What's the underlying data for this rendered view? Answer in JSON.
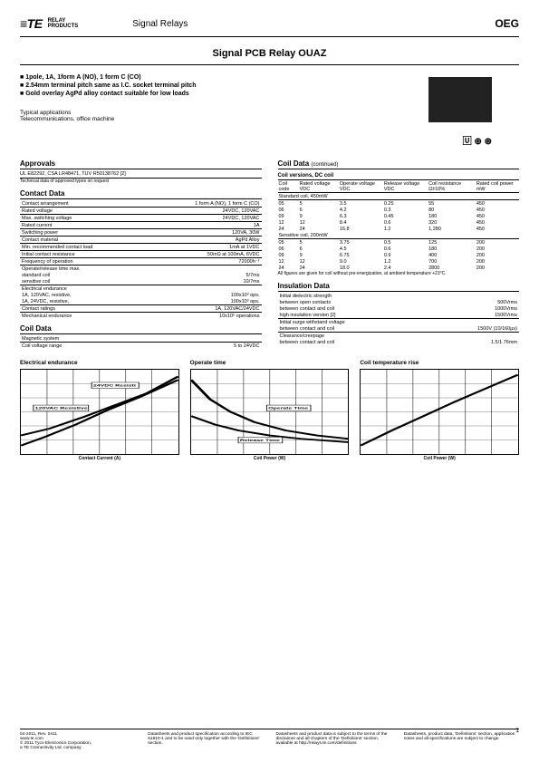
{
  "header": {
    "brand_prefix": "≡TE",
    "brand_sub": "connectivity",
    "relay_products": "RELAY\nPRODUCTS",
    "signal_relays": "Signal Relays",
    "oeg": "OEG"
  },
  "title": "Signal PCB Relay OUAZ",
  "features": [
    "1pole, 1A, 1form A (NO), 1 form C (CO)",
    "2.54mm terminal pitch same as I.C. socket terminal pitch",
    "Gold overlay AgPd alloy contact suitable for low loads"
  ],
  "applications": {
    "label": "Typical applications",
    "text": "Telecommunications, office machine"
  },
  "cert_marks": "🅤 ⓒ ⓢ",
  "approvals": {
    "title": "Approvals",
    "text": "UL E82292, CSA LR48471, TUV R50138762 [2]",
    "note": "Technical data of approved types on request"
  },
  "contact_data": {
    "title": "Contact Data",
    "rows": [
      {
        "k": "Contact arrangement",
        "v": "1 form A (NO), 1 form C (CO)"
      },
      {
        "k": "Rated voltage",
        "v": "24VDC, 120VAC"
      },
      {
        "k": "Max. switching voltage",
        "v": "24VDC, 120VAC"
      },
      {
        "k": "Rated current",
        "v": "1A"
      },
      {
        "k": "Switching power",
        "v": "120VA, 30W"
      },
      {
        "k": "Contact material",
        "v": "AgPd Alloy"
      },
      {
        "k": "Min. recommended contact load",
        "v": "1mA at 1VDC"
      },
      {
        "k": "Initial contact resistance",
        "v": "50mΩ at 100mA, 6VDC"
      },
      {
        "k": "Frequency of operation",
        "v": "72000h⁻¹"
      },
      {
        "k": "Operate/release time max.",
        "v": ""
      },
      {
        "k": "  standard coil",
        "v": "5/7ms"
      },
      {
        "k": "  sensitive coil",
        "v": "10/7ms"
      },
      {
        "k": "Electrical endurance",
        "v": ""
      },
      {
        "k": "  1A, 120VAC, resistive,",
        "v": "100x10³ ops."
      },
      {
        "k": "  1A, 24VDC, resistive,",
        "v": "100x10³ ops."
      },
      {
        "k": "Contact ratings",
        "v": "1A, 120VAC/24VDC"
      },
      {
        "k": "Mechanical endurance",
        "v": "10x10⁶ operations"
      }
    ]
  },
  "coil_data_left": {
    "title": "Coil Data",
    "rows": [
      {
        "k": "Magnetic system",
        "v": ""
      },
      {
        "k": "Coil voltage range",
        "v": "5 to 24VDC"
      }
    ]
  },
  "coil_data_right": {
    "title": "Coil Data",
    "continued": "(continued)",
    "subtitle": "Coil versions, DC coil",
    "headers": [
      "Coil code",
      "Rated voltage VDC",
      "Operate voltage VDC",
      "Release voltage VDC",
      "Coil resistance Ω±10%",
      "Rated coil power mW"
    ],
    "groups": [
      {
        "name": "Standard coil, 450mW",
        "rows": [
          [
            "05",
            "5",
            "3.5",
            "0.25",
            "55",
            "450"
          ],
          [
            "06",
            "6",
            "4.2",
            "0.3",
            "80",
            "450"
          ],
          [
            "09",
            "9",
            "6.3",
            "0.45",
            "180",
            "450"
          ],
          [
            "12",
            "12",
            "8.4",
            "0.6",
            "320",
            "450"
          ],
          [
            "24",
            "24",
            "16.8",
            "1.2",
            "1,280",
            "450"
          ]
        ]
      },
      {
        "name": "Sensitive coil, 200mW",
        "rows": [
          [
            "05",
            "5",
            "3.75",
            "0.5",
            "125",
            "200"
          ],
          [
            "06",
            "6",
            "4.5",
            "0.6",
            "180",
            "200"
          ],
          [
            "09",
            "9",
            "6.75",
            "0.9",
            "400",
            "200"
          ],
          [
            "12",
            "12",
            "9.0",
            "1.2",
            "700",
            "200"
          ],
          [
            "24",
            "24",
            "18.0",
            "2.4",
            "2800",
            "200"
          ]
        ]
      }
    ],
    "note": "All figures are given for coil without pre-energization, at ambient temperature +23°C."
  },
  "insulation": {
    "title": "Insulation Data",
    "rows": [
      {
        "k": "Initial dielectric strength",
        "v": ""
      },
      {
        "k": "  between open contacts",
        "v": "500Vrms"
      },
      {
        "k": "  between contact and coil",
        "v": "1000Vrms"
      },
      {
        "k": "  high insulation version [2]",
        "v": "1500Vrms"
      },
      {
        "k": "Initial surge withstand voltage",
        "v": ""
      },
      {
        "k": "  between contact and coil",
        "v": "1500V (10/160μs)"
      },
      {
        "k": "Clearance/creepage",
        "v": ""
      },
      {
        "k": "  between contact and coil",
        "v": "1.5/1.76mm"
      }
    ]
  },
  "charts": {
    "electrical": {
      "title": "Electrical endurance",
      "xlabel": "Contact Current (A)",
      "ylabel": "Operation (x 10³)",
      "xticks": [
        "0.2",
        "0.4",
        "0.6",
        "0.8",
        "1.0",
        "1.2"
      ],
      "yticks": [
        "1",
        "10",
        "100"
      ],
      "labels": [
        "24VDC Resisti",
        "120VAC Resistive"
      ],
      "curve1": [
        [
          0,
          90
        ],
        [
          15,
          80
        ],
        [
          35,
          65
        ],
        [
          55,
          48
        ],
        [
          75,
          33
        ],
        [
          100,
          12
        ]
      ],
      "curve2": [
        [
          0,
          78
        ],
        [
          18,
          70
        ],
        [
          40,
          56
        ],
        [
          60,
          42
        ],
        [
          80,
          28
        ],
        [
          100,
          8
        ]
      ]
    },
    "operate": {
      "title": "Operate time",
      "xlabel": "Coil Power (W)",
      "ylabel": "Time (msec.)",
      "xticks": [
        "0.1",
        "0.2",
        "0.3",
        "0.4",
        "0.5",
        "0.6",
        "0.7"
      ],
      "yticks": [
        "0",
        "2",
        "4",
        "6",
        "8",
        "10",
        "12"
      ],
      "labels": [
        "Operate Time",
        "Release Time"
      ],
      "curve1": [
        [
          0,
          12
        ],
        [
          12,
          35
        ],
        [
          25,
          50
        ],
        [
          40,
          62
        ],
        [
          60,
          72
        ],
        [
          80,
          78
        ],
        [
          100,
          82
        ]
      ],
      "curve2": [
        [
          0,
          55
        ],
        [
          15,
          65
        ],
        [
          30,
          72
        ],
        [
          50,
          78
        ],
        [
          70,
          82
        ],
        [
          100,
          86
        ]
      ]
    },
    "temp": {
      "title": "Coil temperature rise",
      "xlabel": "Coil Power (W)",
      "ylabel": "Temp Rise (°C)",
      "xticks": [
        "0.1",
        "0.2",
        "0.3",
        "0.4",
        "0.5",
        "0.6",
        "0.7"
      ],
      "yticks": [
        "0",
        "10",
        "20",
        "30",
        "40",
        "50",
        "60"
      ],
      "curve1": [
        [
          0,
          90
        ],
        [
          20,
          72
        ],
        [
          40,
          55
        ],
        [
          60,
          38
        ],
        [
          80,
          22
        ],
        [
          100,
          6
        ]
      ]
    }
  },
  "footer": {
    "col1": "04-2011, Rev. 0411\nwww.te.com\n© 2011 Tyco Electronics Corporation,\na TE Connectivity Ltd. company",
    "col2": "Datasheets and product specification according to IEC 61810-1 and to be used only together with the 'Definitions' section.",
    "col3": "Datasheets and product data is subject to the terms of the disclaimer and all chapters of the 'Definitions' section, available at http://relays.te.com/definitions",
    "col4": "Datasheets, product data, 'Definitions' section, application notes and all specifications are subject to change."
  },
  "page": "1"
}
